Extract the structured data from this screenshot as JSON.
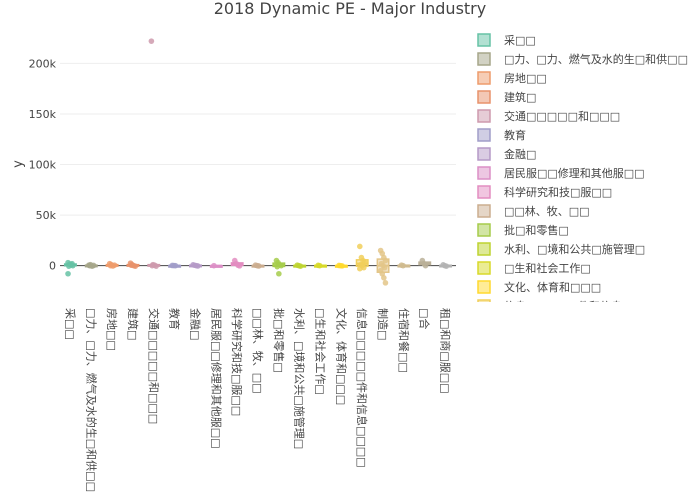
{
  "chart_data": {
    "type": "box",
    "title": "2018 Dynamic PE - Major Industry",
    "xlabel": "",
    "ylabel": "y",
    "ylim": [
      -30000,
      235000
    ],
    "yticks": [
      0,
      50000,
      100000,
      150000,
      200000
    ],
    "ytick_labels": [
      "0",
      "50k",
      "100k",
      "150k",
      "200k"
    ],
    "grid": true,
    "legend_position": "right",
    "categories": [
      "采□□",
      "□力、□力、燃气及水的生□和供□□",
      "房地□□",
      "建筑□",
      "交通□□□□□和□□□",
      "教育",
      "金融□",
      "居民服□□修理和其他服□□",
      "科学研究和技□服□□",
      "□□林、牧、□□",
      "批□和零售□",
      "水利、□境和公共□施管理□",
      "□生和社会工作□",
      "文化、体育和□□□",
      "信息□□□□□件和信息□□□□",
      "制造□",
      "住宿和餐□□",
      "□合",
      "租□和商□服□□"
    ],
    "legend_visible": [
      "采□□",
      "□力、□力、燃气及水的生□和供□□",
      "房地□□",
      "建筑□",
      "交通□□□□□和□□□",
      "教育",
      "金融□",
      "居民服□□修理和其他服□□",
      "科学研究和技□服□□",
      "□□林、牧、□□",
      "批□和零售□",
      "水利、□境和公共□施管理□",
      "□生和社会工作□",
      "文化、体育和□□□",
      "信息□□□□□件和信息□□□□"
    ],
    "colors": [
      "#66c2a5",
      "#a6a68a",
      "#ee9c6c",
      "#e8926b",
      "#ce9aad",
      "#a19dc9",
      "#b59ac7",
      "#dc8fc6",
      "#e38dc1",
      "#cbad8f",
      "#a6cc4b",
      "#bed331",
      "#d8d92a",
      "#ffd92f",
      "#f1cf5a",
      "#e3c588",
      "#d0bb8f",
      "#bab098",
      "#b3b3b3"
    ],
    "series": [
      {
        "name": "采□□",
        "values": [
          3000,
          1500,
          800,
          0,
          -500,
          1000,
          2000,
          -8000
        ]
      },
      {
        "name": "□力、□力、燃气及水的生□和供□□",
        "values": [
          500,
          1000,
          -500,
          200,
          0
        ]
      },
      {
        "name": "房地□□",
        "values": [
          2000,
          1000,
          -300,
          500,
          0
        ]
      },
      {
        "name": "建筑□",
        "values": [
          2500,
          1000,
          0,
          -500,
          400
        ]
      },
      {
        "name": "交通□□□□□和□□□",
        "values": [
          222000,
          1000,
          500,
          -500,
          0
        ]
      },
      {
        "name": "教育",
        "values": [
          200,
          100,
          0
        ]
      },
      {
        "name": "金融□",
        "values": [
          800,
          400,
          0,
          -300
        ]
      },
      {
        "name": "居民服□□修理和其他服□□",
        "values": [
          0
        ]
      },
      {
        "name": "科学研究和技□服□□",
        "values": [
          5000,
          2000,
          500,
          -200
        ]
      },
      {
        "name": "□□林、牧、□□",
        "values": [
          500,
          0,
          -300
        ]
      },
      {
        "name": "批□和零售□",
        "values": [
          5000,
          3000,
          1000,
          0,
          -1000,
          -8000
        ]
      },
      {
        "name": "水利、□境和公共□施管理□",
        "values": [
          500,
          0,
          -500
        ]
      },
      {
        "name": "□生和社会工作□",
        "values": [
          300,
          0
        ]
      },
      {
        "name": "文化、体育和□□□",
        "values": [
          200,
          0,
          -200
        ]
      },
      {
        "name": "信息□□□□□件和信息□□□□",
        "values": [
          19000,
          8000,
          5000,
          3000,
          1000,
          0,
          -2000,
          -3000
        ]
      },
      {
        "name": "制造□",
        "values": [
          15000,
          12000,
          8000,
          5000,
          2000,
          0,
          -2000,
          -5000,
          -8000,
          -12000,
          -17000
        ]
      },
      {
        "name": "住宿和餐□□",
        "values": [
          500,
          0
        ]
      },
      {
        "name": "□合",
        "values": [
          5000,
          2000,
          0
        ]
      },
      {
        "name": "租□和商□服□□",
        "values": [
          800,
          0,
          -500
        ]
      }
    ]
  }
}
